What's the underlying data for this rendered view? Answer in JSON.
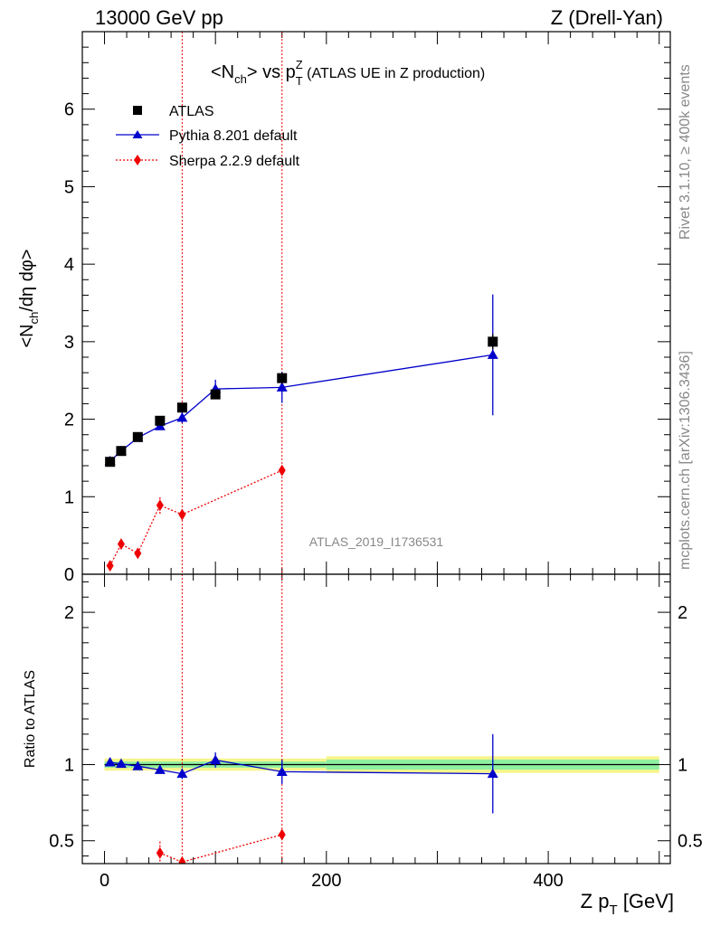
{
  "header": {
    "left": "13000 GeV pp",
    "right": "Z (Drell-Yan)"
  },
  "side_labels": {
    "rivet": "Rivet 3.1.10, ≥ 400k events",
    "mcplots": "mcplots.cern.ch [arXiv:1306.3436]"
  },
  "watermark": "ATLAS_2019_I1736531",
  "colors": {
    "atlas": "#000000",
    "pythia": "#0000cc",
    "sherpa": "#ee0000",
    "band_inner": "#8fefa0",
    "band_outer": "#f5f58c"
  },
  "chart_data": [
    {
      "type": "scatter",
      "title": "<N_ch> vs p_T^Z",
      "title_parts": {
        "main": "<N",
        "sub1": "ch",
        "mid": "> vs p",
        "sup2": "Z",
        "sub2": "T",
        "suffix": " (ATLAS UE in Z production)"
      },
      "ylabel": "<N_ch/dη dφ>",
      "ylabel_parts": {
        "a": "<N",
        "sub": "ch",
        "b": "/dη dφ>"
      },
      "xlim": [
        -20,
        510
      ],
      "ylim": [
        0,
        7
      ],
      "yticks": [
        0,
        1,
        2,
        3,
        4,
        5,
        6
      ],
      "ytick_labels": [
        "0",
        "1",
        "2",
        "3",
        "4",
        "5",
        "6"
      ],
      "vlines": [
        70,
        160
      ],
      "legend": [
        "ATLAS",
        "Pythia 8.201 default",
        "Sherpa 2.2.9 default"
      ],
      "legend_position": "top-left",
      "series": [
        {
          "name": "ATLAS",
          "marker": "square",
          "x": [
            5,
            15,
            30,
            50,
            70,
            100,
            160,
            350
          ],
          "y": [
            1.45,
            1.59,
            1.77,
            1.98,
            2.15,
            2.32,
            2.53,
            3.0
          ],
          "err": [
            0.03,
            0.03,
            0.03,
            0.04,
            0.05,
            0.05,
            0.07,
            0.1
          ]
        },
        {
          "name": "Pythia 8.201 default",
          "marker": "triangle",
          "line": "solid",
          "x": [
            5,
            15,
            30,
            50,
            70,
            100,
            160,
            350
          ],
          "y": [
            1.46,
            1.59,
            1.76,
            1.91,
            2.02,
            2.39,
            2.41,
            2.83
          ],
          "err": [
            0.04,
            0.04,
            0.04,
            0.05,
            0.07,
            0.12,
            0.2,
            0.78
          ]
        },
        {
          "name": "Sherpa 2.2.9 default",
          "marker": "diamond",
          "line": "dotted",
          "x": [
            5,
            15,
            30,
            50,
            70,
            160
          ],
          "y": [
            0.11,
            0.39,
            0.27,
            0.89,
            0.77,
            1.34
          ],
          "err": [
            0.04,
            0.05,
            0.06,
            0.11,
            0.06,
            0.05
          ]
        }
      ]
    },
    {
      "type": "scatter",
      "ylabel": "Ratio to ATLAS",
      "xlabel": "Z p_T [GeV]",
      "xlabel_parts": {
        "a": "Z p",
        "sub": "T",
        "b": " [GeV]"
      },
      "xlim": [
        -20,
        510
      ],
      "ylim": [
        0.35,
        2.25
      ],
      "yticks": [
        0.5,
        1,
        2
      ],
      "ytick_labels": [
        "0.5",
        "1",
        "2"
      ],
      "xticks": [
        0,
        200,
        400
      ],
      "xtick_labels": [
        "0",
        "200",
        "400"
      ],
      "reference": 1,
      "bands": [
        {
          "x0": 0,
          "x1": 200,
          "inner": 0.02,
          "outer": 0.04
        },
        {
          "x0": 200,
          "x1": 500,
          "inner": 0.033,
          "outer": 0.055
        }
      ],
      "series": [
        {
          "name": "Pythia 8.201 default",
          "marker": "triangle",
          "line": "solid",
          "x": [
            5,
            15,
            30,
            50,
            70,
            100,
            160,
            350
          ],
          "y": [
            1.015,
            1.005,
            0.99,
            0.965,
            0.94,
            1.03,
            0.953,
            0.94
          ],
          "err": [
            0.015,
            0.015,
            0.015,
            0.02,
            0.035,
            0.05,
            0.08,
            0.26
          ]
        },
        {
          "name": "Sherpa 2.2.9 default",
          "marker": "diamond",
          "line": "dotted",
          "x": [
            50,
            70,
            160
          ],
          "y": [
            0.42,
            0.36,
            0.54
          ],
          "err": [
            0.08,
            0.03,
            0.02
          ]
        }
      ]
    }
  ]
}
